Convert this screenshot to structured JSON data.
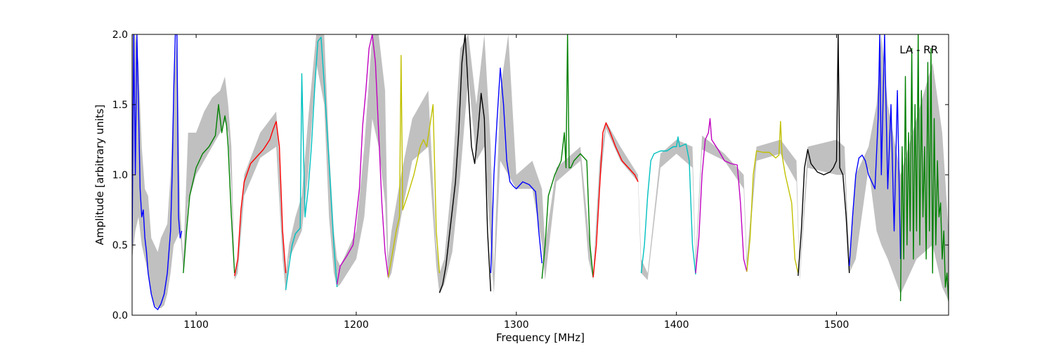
{
  "chart_data": {
    "type": "line",
    "title": "",
    "xlabel": "Frequency [MHz]",
    "ylabel": "Amplitude [arbitrary units]",
    "xlim": [
      1060,
      1570
    ],
    "ylim": [
      0,
      2.0
    ],
    "xticks": [
      1100,
      1200,
      1300,
      1400,
      1500
    ],
    "xtick_labels": [
      "1100",
      "1200",
      "1300",
      "1400",
      "1500"
    ],
    "yticks": [
      0.0,
      0.5,
      1.0,
      1.5,
      2.0
    ],
    "ytick_labels": [
      "0.0",
      "0.5",
      "1.0",
      "1.5",
      "2.0"
    ],
    "annotation": "LA - RR",
    "grid": false,
    "envelope_color": "#c0c0c0",
    "envelope": {
      "x": [
        1060,
        1062,
        1064,
        1066,
        1068,
        1070,
        1072,
        1074,
        1076,
        1078,
        1080,
        1082,
        1084,
        1086,
        1088,
        1090,
        1092,
        1095,
        1100,
        1105,
        1110,
        1115,
        1118,
        1120,
        1122,
        1124,
        1126,
        1130,
        1140,
        1150,
        1152,
        1154,
        1156,
        1158,
        1162,
        1166,
        1170,
        1175,
        1180,
        1183,
        1186,
        1188,
        1190,
        1200,
        1205,
        1210,
        1214,
        1218,
        1220,
        1222,
        1228,
        1235,
        1245,
        1250,
        1252,
        1255,
        1260,
        1265,
        1270,
        1275,
        1280,
        1284,
        1286,
        1290,
        1295,
        1300,
        1310,
        1316,
        1318,
        1325,
        1340,
        1345,
        1348,
        1352,
        1356,
        1365,
        1376,
        1378,
        1382,
        1390,
        1400,
        1410,
        1412,
        1416,
        1430,
        1442,
        1444,
        1450,
        1465,
        1475,
        1477,
        1482,
        1500,
        1505,
        1508,
        1512,
        1520,
        1525,
        1528,
        1532,
        1540,
        1550,
        1560,
        1566,
        1570
      ],
      "upper": [
        2.0,
        2.0,
        1.8,
        1.2,
        0.9,
        0.85,
        0.55,
        0.5,
        0.45,
        0.55,
        0.6,
        0.65,
        1.0,
        1.6,
        2.0,
        0.75,
        0.4,
        1.3,
        1.3,
        1.45,
        1.55,
        1.6,
        1.7,
        1.5,
        1.2,
        0.3,
        0.4,
        1.0,
        1.3,
        1.45,
        1.1,
        0.6,
        0.3,
        0.5,
        0.7,
        0.85,
        1.4,
        2.0,
        2.0,
        1.2,
        0.6,
        0.4,
        0.35,
        0.6,
        1.2,
        2.0,
        2.0,
        1.6,
        0.4,
        0.6,
        1.0,
        1.4,
        1.6,
        0.5,
        0.3,
        0.4,
        1.0,
        1.9,
        2.0,
        1.5,
        2.0,
        1.2,
        0.3,
        1.6,
        2.0,
        1.0,
        1.1,
        0.9,
        0.5,
        1.05,
        1.2,
        0.6,
        0.3,
        1.1,
        1.38,
        1.2,
        1.0,
        0.4,
        0.3,
        1.15,
        1.25,
        1.2,
        0.4,
        1.28,
        1.15,
        1.0,
        0.4,
        1.2,
        1.25,
        1.1,
        0.3,
        1.2,
        1.25,
        1.2,
        0.4,
        1.0,
        1.2,
        1.5,
        2.0,
        1.5,
        1.0,
        1.4,
        1.8,
        1.3,
        0.6
      ],
      "lower": [
        0.4,
        0.6,
        0.7,
        0.5,
        0.4,
        0.3,
        0.15,
        0.07,
        0.05,
        0.05,
        0.07,
        0.15,
        0.3,
        0.5,
        0.55,
        0.6,
        0.3,
        0.8,
        1.0,
        1.1,
        1.2,
        1.3,
        1.38,
        1.3,
        0.9,
        0.25,
        0.3,
        0.85,
        1.12,
        1.2,
        0.8,
        0.4,
        0.16,
        0.4,
        0.5,
        0.6,
        1.0,
        1.8,
        1.5,
        0.7,
        0.3,
        0.2,
        0.22,
        0.4,
        0.7,
        1.4,
        1.2,
        0.8,
        0.25,
        0.3,
        0.7,
        1.1,
        1.2,
        0.35,
        0.15,
        0.22,
        0.45,
        1.0,
        1.7,
        1.1,
        1.2,
        0.5,
        0.15,
        1.1,
        1.0,
        0.9,
        0.9,
        0.5,
        0.25,
        0.95,
        1.1,
        0.4,
        0.25,
        0.9,
        1.33,
        1.1,
        0.95,
        0.3,
        0.25,
        1.05,
        1.15,
        1.05,
        0.3,
        1.18,
        1.1,
        0.9,
        0.3,
        1.1,
        1.15,
        0.95,
        0.25,
        1.05,
        1.0,
        1.0,
        0.3,
        0.4,
        1.05,
        0.6,
        0.5,
        0.4,
        0.15,
        0.4,
        0.5,
        0.2,
        0.1
      ]
    },
    "series": [
      {
        "color": "#0000ff",
        "x": [
          1060,
          1061,
          1062,
          1063,
          1064,
          1065,
          1066,
          1067,
          1068,
          1069,
          1070,
          1072,
          1074,
          1076,
          1078,
          1080,
          1082,
          1084,
          1085,
          1086,
          1087,
          1088,
          1089,
          1090,
          1091
        ],
        "y": [
          0.5,
          2.0,
          1.0,
          2.0,
          1.5,
          0.9,
          0.7,
          0.75,
          0.55,
          0.45,
          0.3,
          0.15,
          0.06,
          0.04,
          0.08,
          0.15,
          0.3,
          0.6,
          1.0,
          1.6,
          2.0,
          2.0,
          0.7,
          0.55,
          0.6
        ]
      },
      {
        "color": "#008000",
        "x": [
          1092,
          1094,
          1096,
          1098,
          1100,
          1104,
          1108,
          1112,
          1114,
          1116,
          1118,
          1119,
          1120,
          1122,
          1124
        ],
        "y": [
          0.3,
          0.6,
          0.85,
          0.95,
          1.05,
          1.15,
          1.2,
          1.28,
          1.5,
          1.3,
          1.42,
          1.35,
          1.2,
          0.7,
          0.3
        ]
      },
      {
        "color": "#ff0000",
        "x": [
          1124,
          1126,
          1128,
          1130,
          1134,
          1138,
          1142,
          1146,
          1148,
          1150,
          1152,
          1154,
          1156
        ],
        "y": [
          0.28,
          0.4,
          0.75,
          0.95,
          1.08,
          1.13,
          1.18,
          1.25,
          1.32,
          1.38,
          1.2,
          0.6,
          0.3
        ]
      },
      {
        "color": "#00c0c0",
        "x": [
          1156,
          1158,
          1160,
          1162,
          1165,
          1166,
          1168,
          1170,
          1172,
          1174,
          1176,
          1178,
          1180,
          1183,
          1186,
          1188
        ],
        "y": [
          0.18,
          0.35,
          0.5,
          0.58,
          0.62,
          1.72,
          0.7,
          0.9,
          1.2,
          1.6,
          1.95,
          1.98,
          1.65,
          1.1,
          0.5,
          0.2
        ]
      },
      {
        "color": "#c000c0",
        "x": [
          1188,
          1190,
          1194,
          1198,
          1202,
          1204,
          1206,
          1208,
          1210,
          1212,
          1214,
          1216,
          1218,
          1220
        ],
        "y": [
          0.22,
          0.35,
          0.42,
          0.5,
          0.9,
          1.35,
          1.6,
          1.9,
          2.0,
          1.8,
          1.3,
          0.8,
          0.45,
          0.27
        ]
      },
      {
        "color": "#c0c000",
        "x": [
          1220,
          1222,
          1225,
          1227,
          1228,
          1229,
          1232,
          1236,
          1240,
          1242,
          1244,
          1246,
          1248,
          1250,
          1252
        ],
        "y": [
          0.27,
          0.4,
          0.6,
          0.7,
          1.85,
          0.75,
          0.85,
          1.0,
          1.2,
          1.25,
          1.2,
          1.35,
          1.5,
          0.6,
          0.3
        ]
      },
      {
        "color": "#000000",
        "x": [
          1252,
          1254,
          1256,
          1258,
          1260,
          1262,
          1264,
          1266,
          1268,
          1270,
          1272,
          1274,
          1276,
          1278,
          1280,
          1282,
          1284
        ],
        "y": [
          0.16,
          0.22,
          0.35,
          0.55,
          0.75,
          0.95,
          1.3,
          1.8,
          2.0,
          1.6,
          1.2,
          1.08,
          1.3,
          1.58,
          1.4,
          0.6,
          0.17
        ]
      },
      {
        "color": "#0000ff",
        "x": [
          1284,
          1286,
          1288,
          1290,
          1292,
          1294,
          1296,
          1298,
          1300,
          1304,
          1308,
          1312,
          1314,
          1316
        ],
        "y": [
          0.3,
          1.0,
          1.4,
          1.76,
          1.5,
          1.1,
          0.95,
          0.92,
          0.9,
          0.95,
          0.93,
          0.88,
          0.6,
          0.37
        ]
      },
      {
        "color": "#008000",
        "x": [
          1316,
          1318,
          1320,
          1324,
          1328,
          1330,
          1331,
          1332,
          1333,
          1334,
          1336,
          1340,
          1344,
          1346,
          1348
        ],
        "y": [
          0.26,
          0.5,
          0.85,
          1.0,
          1.1,
          1.3,
          1.05,
          2.0,
          1.05,
          1.05,
          1.1,
          1.15,
          1.1,
          0.5,
          0.27
        ]
      },
      {
        "color": "#ff0000",
        "x": [
          1348,
          1350,
          1352,
          1354,
          1356,
          1358,
          1362,
          1366,
          1370,
          1374,
          1376
        ],
        "y": [
          0.27,
          0.5,
          0.9,
          1.3,
          1.37,
          1.32,
          1.2,
          1.1,
          1.05,
          1.0,
          0.95
        ]
      },
      {
        "color": "#00c0c0",
        "x": [
          1378,
          1380,
          1382,
          1384,
          1386,
          1390,
          1394,
          1398,
          1400,
          1401,
          1402,
          1406,
          1408,
          1410,
          1412
        ],
        "y": [
          0.3,
          0.5,
          0.85,
          1.1,
          1.15,
          1.17,
          1.17,
          1.2,
          1.2,
          1.27,
          1.2,
          1.22,
          1.1,
          0.5,
          0.29
        ]
      },
      {
        "color": "#c000c0",
        "x": [
          1412,
          1414,
          1416,
          1418,
          1420,
          1421,
          1422,
          1426,
          1430,
          1434,
          1438,
          1440,
          1442,
          1444
        ],
        "y": [
          0.3,
          0.55,
          1.0,
          1.25,
          1.3,
          1.4,
          1.25,
          1.18,
          1.1,
          1.08,
          1.07,
          0.8,
          0.4,
          0.31
        ]
      },
      {
        "color": "#c0c000",
        "x": [
          1444,
          1446,
          1448,
          1450,
          1454,
          1458,
          1462,
          1464,
          1465,
          1466,
          1468,
          1472,
          1474,
          1476
        ],
        "y": [
          0.31,
          0.55,
          1.0,
          1.17,
          1.16,
          1.16,
          1.12,
          1.14,
          1.38,
          1.14,
          1.0,
          0.8,
          0.4,
          0.3
        ]
      },
      {
        "color": "#000000",
        "x": [
          1476,
          1478,
          1480,
          1482,
          1484,
          1488,
          1492,
          1496,
          1498,
          1500,
          1501,
          1502,
          1504,
          1506,
          1508
        ],
        "y": [
          0.28,
          0.6,
          1.05,
          1.18,
          1.08,
          1.02,
          1.0,
          1.02,
          1.05,
          1.1,
          2.0,
          1.05,
          1.0,
          0.7,
          0.3
        ]
      },
      {
        "color": "#0000ff",
        "x": [
          1508,
          1510,
          1512,
          1514,
          1516,
          1518,
          1520,
          1524,
          1526,
          1527,
          1528,
          1530,
          1532,
          1534,
          1536,
          1538,
          1540
        ],
        "y": [
          0.35,
          0.7,
          1.0,
          1.12,
          1.14,
          1.1,
          1.0,
          0.9,
          1.4,
          2.0,
          1.0,
          2.0,
          0.9,
          1.5,
          0.6,
          1.6,
          0.4
        ]
      },
      {
        "color": "#008000",
        "x": [
          1540,
          1541,
          1542,
          1543,
          1544,
          1545,
          1546,
          1547,
          1548,
          1549,
          1550,
          1551,
          1552,
          1553,
          1554,
          1555,
          1556,
          1557,
          1558,
          1559,
          1560,
          1561,
          1562,
          1563,
          1564,
          1565,
          1566,
          1567,
          1568,
          1569,
          1570
        ],
        "y": [
          0.1,
          1.2,
          0.4,
          1.7,
          0.5,
          1.3,
          0.6,
          1.9,
          0.4,
          1.5,
          0.6,
          2.0,
          0.5,
          1.6,
          0.7,
          1.2,
          0.4,
          1.8,
          0.6,
          1.9,
          0.3,
          1.4,
          0.5,
          1.1,
          0.7,
          0.8,
          0.4,
          0.6,
          0.2,
          0.3,
          0.1
        ]
      }
    ]
  }
}
